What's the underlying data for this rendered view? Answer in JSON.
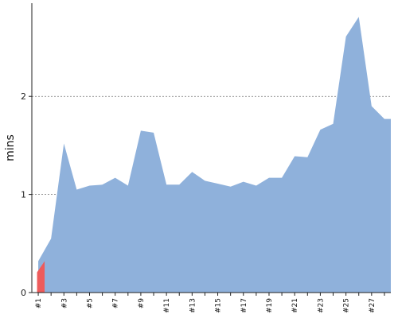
{
  "chart_data": {
    "type": "area",
    "title": "",
    "ylabel": "mins",
    "xlabel": "",
    "ylim": [
      0,
      2.95
    ],
    "yticks": [
      0,
      1,
      2
    ],
    "grid": "y-dashed",
    "x": [
      "#1",
      "#2",
      "#3",
      "#4",
      "#5",
      "#6",
      "#7",
      "#8",
      "#9",
      "#10",
      "#11",
      "#12",
      "#13",
      "#14",
      "#15",
      "#16",
      "#17",
      "#18",
      "#19",
      "#20",
      "#21",
      "#22",
      "#23",
      "#24",
      "#25",
      "#26",
      "#27",
      "#28"
    ],
    "shown_xticks": [
      "#1",
      "#3",
      "#5",
      "#7",
      "#9",
      "#11",
      "#13",
      "#15",
      "#17",
      "#19",
      "#21",
      "#23",
      "#25",
      "#27"
    ],
    "values": [
      0.32,
      0.55,
      1.52,
      1.05,
      1.09,
      1.1,
      1.17,
      1.09,
      1.65,
      1.63,
      1.1,
      1.1,
      1.23,
      1.14,
      1.11,
      1.08,
      1.13,
      1.09,
      1.17,
      1.17,
      1.39,
      1.38,
      1.66,
      1.72,
      2.61,
      2.81,
      1.9,
      1.77
    ],
    "colors": {
      "area": "#8fb1db",
      "highlight": "#ee5b5b",
      "axis": "#222222",
      "grid": "#777777"
    }
  }
}
